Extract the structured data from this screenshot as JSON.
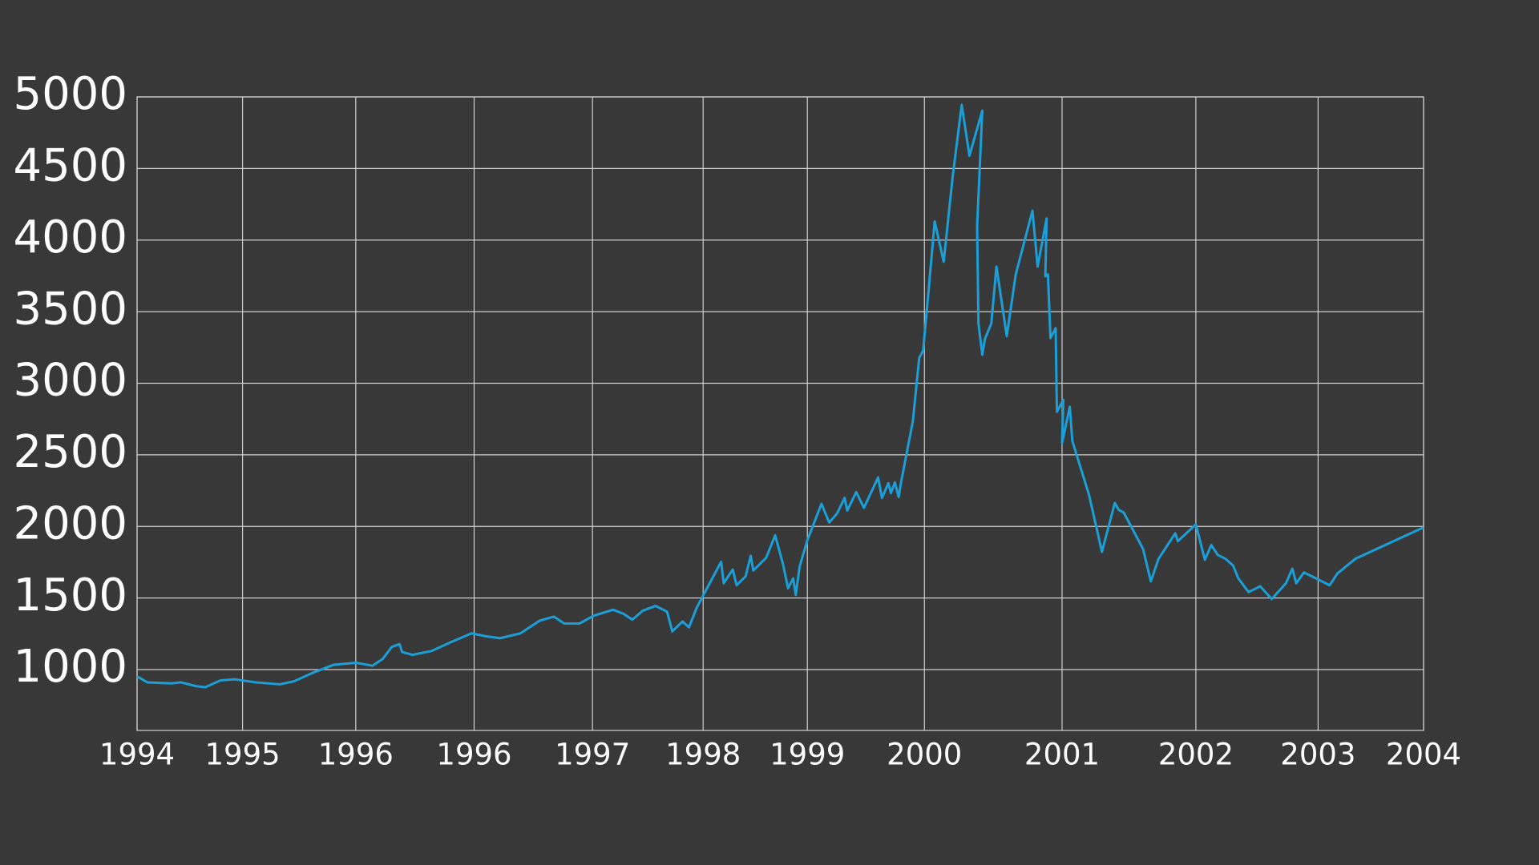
{
  "chart_data": {
    "type": "line",
    "background": "#383838",
    "grid": true,
    "xlim": [
      1994,
      2004
    ],
    "xticks": [
      1994,
      {
        "value": 1994.82,
        "label": "1995"
      },
      {
        "value": 1995.7,
        "label": "1996"
      },
      {
        "value": 1996.62,
        "label": "1996"
      },
      {
        "value": 1997.54,
        "label": "1997"
      },
      {
        "value": 1998.4,
        "label": "1998"
      },
      {
        "value": 1999.21,
        "label": "1999"
      },
      {
        "value": 2000.12,
        "label": "2000"
      },
      {
        "value": 2001.19,
        "label": "2001"
      },
      {
        "value": 2002.23,
        "label": "2002"
      },
      {
        "value": 2003.18,
        "label": "2003"
      },
      2004
    ],
    "ylim": [
      575,
      5000
    ],
    "yticks": [
      1000,
      1500,
      2000,
      2500,
      3000,
      3500,
      4000,
      4500,
      5000
    ],
    "x": [
      1994.0,
      1994.08,
      1994.27,
      1994.34,
      1994.46,
      1994.53,
      1994.65,
      1994.76,
      1994.92,
      1995.11,
      1995.22,
      1995.37,
      1995.53,
      1995.7,
      1995.83,
      1995.91,
      1995.98,
      1996.04,
      1996.06,
      1996.14,
      1996.29,
      1996.44,
      1996.6,
      1996.71,
      1996.82,
      1996.98,
      1997.13,
      1997.24,
      1997.32,
      1997.44,
      1997.55,
      1997.7,
      1997.78,
      1997.85,
      1997.93,
      1998.03,
      1998.12,
      1998.16,
      1998.24,
      1998.29,
      1998.35,
      1998.43,
      1998.54,
      1998.56,
      1998.63,
      1998.66,
      1998.73,
      1998.77,
      1998.79,
      1998.89,
      1998.96,
      1999.02,
      1999.06,
      1999.1,
      1999.12,
      1999.15,
      1999.21,
      1999.32,
      1999.38,
      1999.44,
      1999.5,
      1999.52,
      1999.59,
      1999.65,
      1999.76,
      1999.79,
      1999.84,
      1999.86,
      1999.89,
      1999.92,
      1999.94,
      2000.03,
      2000.08,
      2000.11,
      2000.15,
      2000.2,
      2000.27,
      2000.34,
      2000.41,
      2000.47,
      2000.57,
      2000.53,
      2000.54,
      2000.57,
      2000.59,
      2000.64,
      2000.68,
      2000.76,
      2000.83,
      2000.96,
      2001.0,
      2001.07,
      2001.06,
      2001.08,
      2001.1,
      2001.14,
      2001.15,
      2001.2,
      2001.19,
      2001.25,
      2001.27,
      2001.4,
      2001.5,
      2001.6,
      2001.63,
      2001.67,
      2001.82,
      2001.88,
      2001.94,
      2002.07,
      2002.09,
      2002.23,
      2002.3,
      2002.35,
      2002.4,
      2002.46,
      2002.52,
      2002.56,
      2002.64,
      2002.73,
      2002.82,
      2002.93,
      2002.98,
      2003.01,
      2003.07,
      2003.18,
      2003.27,
      2003.33,
      2003.47,
      2004.0
    ],
    "series": [
      {
        "color": "#1a9fd8",
        "values": [
          952,
          911,
          904,
          911,
          884,
          877,
          925,
          932,
          911,
          897,
          918,
          979,
          1034,
          1048,
          1027,
          1075,
          1158,
          1178,
          1123,
          1103,
          1130,
          1192,
          1253,
          1233,
          1219,
          1253,
          1342,
          1370,
          1322,
          1322,
          1377,
          1418,
          1390,
          1349,
          1411,
          1445,
          1404,
          1267,
          1336,
          1295,
          1432,
          1568,
          1753,
          1603,
          1699,
          1589,
          1651,
          1795,
          1692,
          1781,
          1938,
          1740,
          1568,
          1637,
          1521,
          1719,
          1904,
          2158,
          2027,
          2089,
          2199,
          2110,
          2240,
          2130,
          2342,
          2199,
          2302,
          2233,
          2308,
          2206,
          2315,
          2733,
          3178,
          3226,
          3623,
          4130,
          3849,
          4445,
          4945,
          4589,
          4904,
          4103,
          3418,
          3199,
          3308,
          3418,
          3815,
          3329,
          3760,
          4205,
          3815,
          4151,
          3747,
          3760,
          3315,
          3384,
          2801,
          2884,
          2582,
          2836,
          2596,
          2219,
          1822,
          2164,
          2116,
          2096,
          1842,
          1616,
          1774,
          1952,
          1897,
          2014,
          1767,
          1870,
          1801,
          1774,
          1726,
          1637,
          1541,
          1582,
          1493,
          1603,
          1705,
          1603,
          1678,
          1630,
          1589,
          1671,
          1774,
          1993
        ]
      }
    ]
  }
}
